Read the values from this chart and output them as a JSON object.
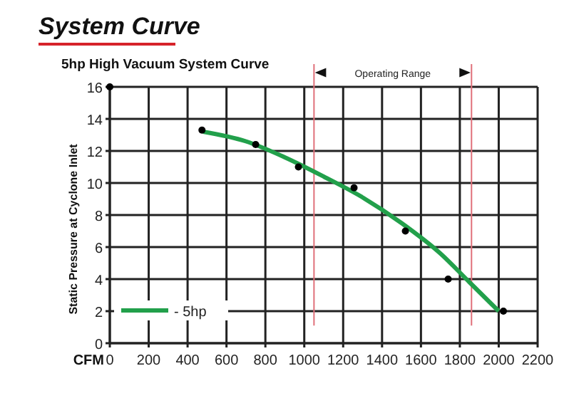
{
  "chart_data": {
    "type": "line",
    "title": "System Curve",
    "subtitle": "5hp High Vacuum System Curve",
    "xlabel": "CFM",
    "ylabel": "Static Pressure at Cyclone Inlet",
    "xlim": [
      0,
      2200
    ],
    "xticks": [
      0,
      200,
      400,
      600,
      800,
      1000,
      1200,
      1400,
      1600,
      1800,
      2000,
      2200
    ],
    "ylim": [
      0,
      16
    ],
    "yticks": [
      0,
      2,
      4,
      6,
      8,
      10,
      12,
      14,
      16
    ],
    "grid": true,
    "legend": "bottom left",
    "series": [
      {
        "name": "- 5hp",
        "color": "#22a04b",
        "marker": "none",
        "x": [
          480,
          700,
          900,
          1100,
          1300,
          1500,
          1700,
          1850,
          2000
        ],
        "values": [
          13.2,
          12.6,
          11.6,
          10.4,
          9.1,
          7.5,
          5.6,
          3.8,
          2.0
        ]
      },
      {
        "type": "scatter",
        "color": "#000000",
        "marker": "circle",
        "x": [
          0,
          474,
          750,
          970,
          1256,
          1520,
          1740,
          2024
        ],
        "values": [
          16,
          13.3,
          12.4,
          11.0,
          9.7,
          7.0,
          4.0,
          2.0
        ]
      }
    ],
    "ref_lines": [
      {
        "axis": "x",
        "value": 1050,
        "color": "#e0707a"
      },
      {
        "axis": "x",
        "value": 1860,
        "color": "#e0707a"
      }
    ],
    "annotations": [
      "Operating Range"
    ]
  }
}
